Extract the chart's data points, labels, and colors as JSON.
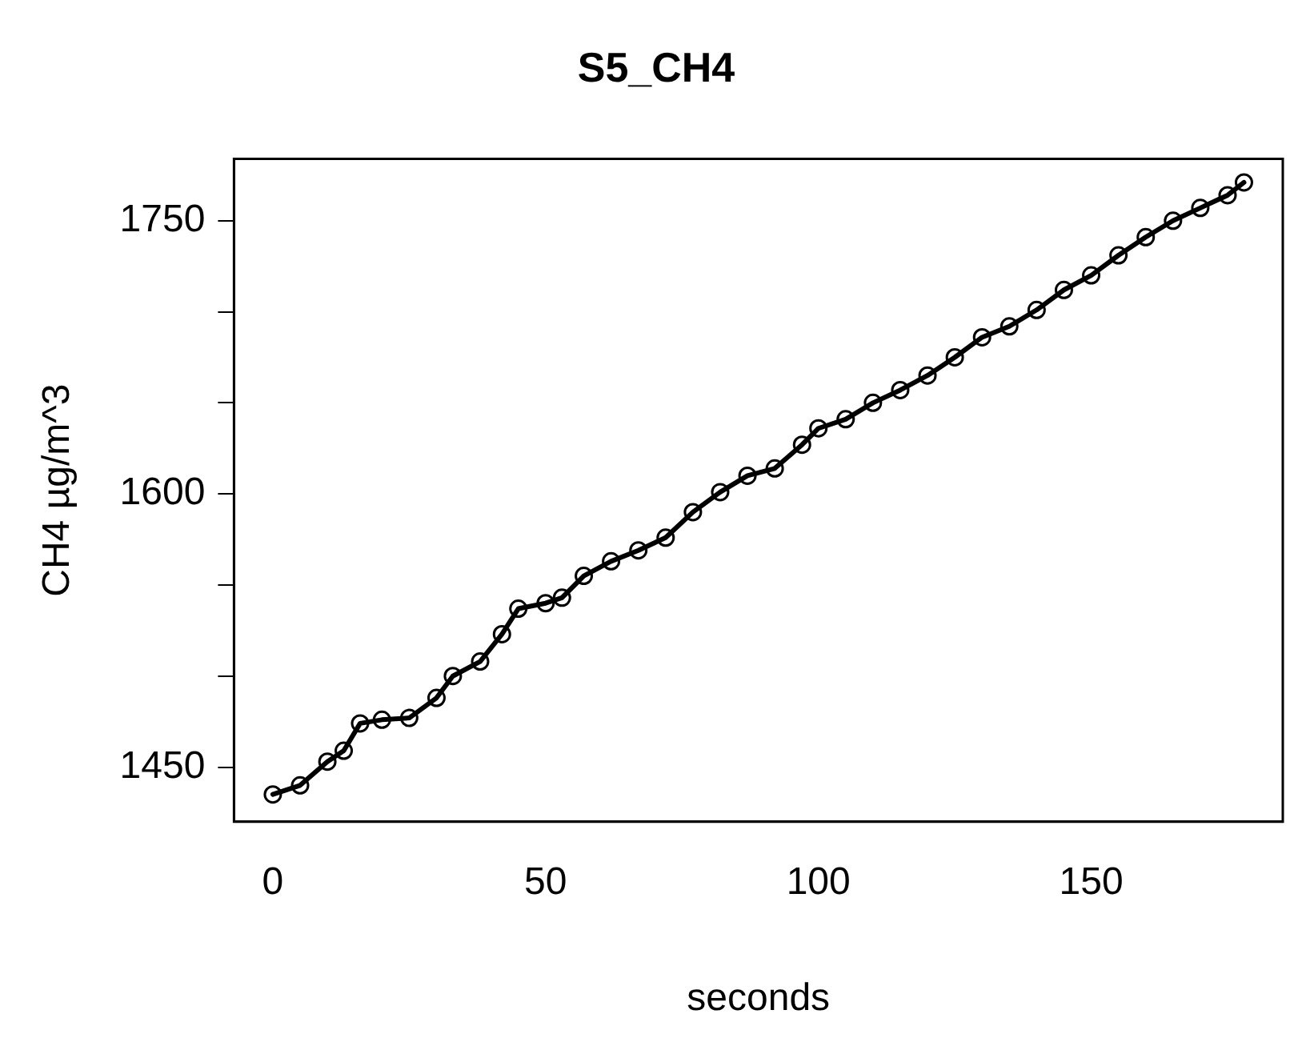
{
  "chart_data": {
    "type": "line",
    "title": "S5_CH4",
    "xlabel": "seconds",
    "ylabel": "CH4 µg/m^3",
    "x": [
      0,
      5,
      10,
      13,
      16,
      20,
      25,
      30,
      33,
      38,
      42,
      45,
      50,
      53,
      57,
      62,
      67,
      72,
      77,
      82,
      87,
      92,
      97,
      100,
      105,
      110,
      115,
      120,
      125,
      130,
      135,
      140,
      145,
      150,
      155,
      160,
      165,
      170,
      175,
      178
    ],
    "series": [
      {
        "color": "#000000",
        "values": [
          1435,
          1440,
          1453,
          1459,
          1474,
          1476,
          1477,
          1488,
          1500,
          1508,
          1523,
          1537,
          1540,
          1543,
          1555,
          1563,
          1569,
          1576,
          1590,
          1601,
          1610,
          1614,
          1627,
          1636,
          1641,
          1650,
          1657,
          1665,
          1675,
          1686,
          1692,
          1701,
          1712,
          1720,
          1731,
          1741,
          1750,
          1757,
          1764,
          1771
        ]
      }
    ],
    "xlim": [
      -7.12,
      185.12
    ],
    "ylim": [
      1420,
      1784
    ],
    "xticks": [
      0,
      50,
      100,
      150
    ],
    "yticks": [
      1450,
      {
        "value": 1500,
        "label": null
      },
      {
        "value": 1550,
        "label": null
      },
      1600,
      {
        "value": 1650,
        "label": null
      },
      {
        "value": 1700,
        "label": null
      },
      1750
    ],
    "grid": false,
    "legend": false,
    "marker": "circle",
    "line_style": "solid"
  }
}
